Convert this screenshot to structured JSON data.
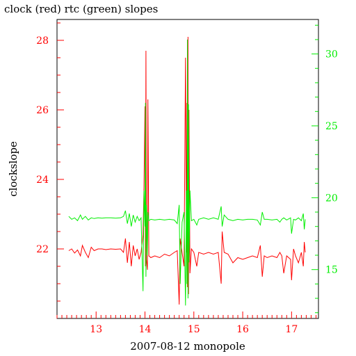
{
  "chart_data": {
    "type": "line",
    "title": "clock (red) rtc (green) slopes",
    "xlabel": "2007-08-12 monopole",
    "ylabel": "clockslope",
    "xlim": [
      12.2,
      17.55
    ],
    "ylim_left": [
      20.0,
      28.6
    ],
    "ylim_right": [
      11.6,
      32.4
    ],
    "x_ticks": [
      13,
      14,
      15,
      16,
      17
    ],
    "y_ticks_left": [
      22,
      24,
      26,
      28
    ],
    "y_ticks_right": [
      15,
      20,
      25,
      30
    ],
    "grid": false,
    "colors": {
      "clock": "#ff0000",
      "rtc": "#00ee00",
      "axis": "#000000"
    },
    "series": [
      {
        "name": "clock",
        "color": "#ff0000",
        "axis": "left",
        "points": [
          [
            12.44,
            21.95
          ],
          [
            12.5,
            22.0
          ],
          [
            12.56,
            21.88
          ],
          [
            12.62,
            21.97
          ],
          [
            12.68,
            21.8
          ],
          [
            12.72,
            22.1
          ],
          [
            12.78,
            21.9
          ],
          [
            12.84,
            21.75
          ],
          [
            12.9,
            22.05
          ],
          [
            12.96,
            21.95
          ],
          [
            13.04,
            22.0
          ],
          [
            13.12,
            22.0
          ],
          [
            13.2,
            21.98
          ],
          [
            13.3,
            22.0
          ],
          [
            13.4,
            21.99
          ],
          [
            13.5,
            22.0
          ],
          [
            13.56,
            21.9
          ],
          [
            13.6,
            22.3
          ],
          [
            13.64,
            21.6
          ],
          [
            13.68,
            22.2
          ],
          [
            13.72,
            21.5
          ],
          [
            13.76,
            22.1
          ],
          [
            13.8,
            21.8
          ],
          [
            13.84,
            22.0
          ],
          [
            13.88,
            21.7
          ],
          [
            13.92,
            21.9
          ],
          [
            13.96,
            22.4
          ],
          [
            13.98,
            23.8
          ],
          [
            14.0,
            26.1
          ],
          [
            14.01,
            21.5
          ],
          [
            14.02,
            27.7
          ],
          [
            14.03,
            21.7
          ],
          [
            14.05,
            21.4
          ],
          [
            14.06,
            26.3
          ],
          [
            14.08,
            21.8
          ],
          [
            14.12,
            21.75
          ],
          [
            14.2,
            21.8
          ],
          [
            14.3,
            21.75
          ],
          [
            14.4,
            21.85
          ],
          [
            14.5,
            21.8
          ],
          [
            14.6,
            21.9
          ],
          [
            14.66,
            21.95
          ],
          [
            14.7,
            20.4
          ],
          [
            14.72,
            22.3
          ],
          [
            14.76,
            21.9
          ],
          [
            14.8,
            21.5
          ],
          [
            14.83,
            27.5
          ],
          [
            14.85,
            21.9
          ],
          [
            14.86,
            26.2
          ],
          [
            14.87,
            20.9
          ],
          [
            14.88,
            28.1
          ],
          [
            14.89,
            20.7
          ],
          [
            14.9,
            26.0
          ],
          [
            14.92,
            21.3
          ],
          [
            14.95,
            22.0
          ],
          [
            15.0,
            21.9
          ],
          [
            15.06,
            21.5
          ],
          [
            15.1,
            21.9
          ],
          [
            15.2,
            21.85
          ],
          [
            15.3,
            21.9
          ],
          [
            15.4,
            21.85
          ],
          [
            15.5,
            21.9
          ],
          [
            15.56,
            21.0
          ],
          [
            15.58,
            22.5
          ],
          [
            15.62,
            21.9
          ],
          [
            15.7,
            21.85
          ],
          [
            15.8,
            21.6
          ],
          [
            15.9,
            21.75
          ],
          [
            16.0,
            21.7
          ],
          [
            16.1,
            21.75
          ],
          [
            16.2,
            21.8
          ],
          [
            16.3,
            21.75
          ],
          [
            16.36,
            22.1
          ],
          [
            16.4,
            21.2
          ],
          [
            16.44,
            21.8
          ],
          [
            16.5,
            21.75
          ],
          [
            16.6,
            21.8
          ],
          [
            16.7,
            21.75
          ],
          [
            16.76,
            21.9
          ],
          [
            16.8,
            21.8
          ],
          [
            16.84,
            21.3
          ],
          [
            16.9,
            21.8
          ],
          [
            16.98,
            21.7
          ],
          [
            17.0,
            21.1
          ],
          [
            17.04,
            22.0
          ],
          [
            17.08,
            21.8
          ],
          [
            17.14,
            21.6
          ],
          [
            17.2,
            21.9
          ],
          [
            17.24,
            21.5
          ],
          [
            17.26,
            22.2
          ],
          [
            17.28,
            21.9
          ]
        ]
      },
      {
        "name": "rtc",
        "color": "#00ee00",
        "axis": "right",
        "points": [
          [
            12.44,
            18.7
          ],
          [
            12.5,
            18.5
          ],
          [
            12.56,
            18.6
          ],
          [
            12.62,
            18.4
          ],
          [
            12.68,
            18.8
          ],
          [
            12.72,
            18.5
          ],
          [
            12.78,
            18.7
          ],
          [
            12.84,
            18.45
          ],
          [
            12.9,
            18.6
          ],
          [
            12.96,
            18.55
          ],
          [
            13.04,
            18.6
          ],
          [
            13.12,
            18.58
          ],
          [
            13.2,
            18.6
          ],
          [
            13.3,
            18.6
          ],
          [
            13.4,
            18.58
          ],
          [
            13.5,
            18.6
          ],
          [
            13.56,
            18.7
          ],
          [
            13.6,
            19.1
          ],
          [
            13.64,
            18.2
          ],
          [
            13.68,
            18.9
          ],
          [
            13.72,
            18.0
          ],
          [
            13.76,
            18.8
          ],
          [
            13.8,
            18.3
          ],
          [
            13.84,
            18.7
          ],
          [
            13.88,
            18.4
          ],
          [
            13.92,
            18.6
          ],
          [
            13.96,
            13.5
          ],
          [
            13.98,
            20.5
          ],
          [
            14.0,
            18.0
          ],
          [
            14.01,
            26.6
          ],
          [
            14.02,
            14.5
          ],
          [
            14.03,
            19.5
          ],
          [
            14.05,
            16.0
          ],
          [
            14.06,
            19.0
          ],
          [
            14.08,
            18.4
          ],
          [
            14.12,
            18.5
          ],
          [
            14.2,
            18.45
          ],
          [
            14.3,
            18.5
          ],
          [
            14.4,
            18.45
          ],
          [
            14.5,
            18.5
          ],
          [
            14.6,
            18.45
          ],
          [
            14.66,
            18.2
          ],
          [
            14.7,
            19.5
          ],
          [
            14.72,
            14.0
          ],
          [
            14.76,
            18.3
          ],
          [
            14.8,
            19.0
          ],
          [
            14.83,
            12.5
          ],
          [
            14.85,
            20.5
          ],
          [
            14.86,
            14.0
          ],
          [
            14.87,
            31.0
          ],
          [
            14.88,
            13.0
          ],
          [
            14.89,
            26.5
          ],
          [
            14.9,
            15.5
          ],
          [
            14.92,
            20.5
          ],
          [
            14.95,
            18.4
          ],
          [
            15.0,
            18.5
          ],
          [
            15.06,
            18.1
          ],
          [
            15.1,
            18.5
          ],
          [
            15.2,
            18.6
          ],
          [
            15.3,
            18.5
          ],
          [
            15.4,
            18.6
          ],
          [
            15.5,
            18.5
          ],
          [
            15.56,
            19.4
          ],
          [
            15.58,
            18.0
          ],
          [
            15.62,
            18.8
          ],
          [
            15.7,
            18.5
          ],
          [
            15.8,
            18.4
          ],
          [
            15.9,
            18.5
          ],
          [
            16.0,
            18.45
          ],
          [
            16.1,
            18.5
          ],
          [
            16.2,
            18.5
          ],
          [
            16.3,
            18.45
          ],
          [
            16.36,
            18.1
          ],
          [
            16.4,
            19.0
          ],
          [
            16.44,
            18.5
          ],
          [
            16.5,
            18.5
          ],
          [
            16.6,
            18.45
          ],
          [
            16.7,
            18.5
          ],
          [
            16.76,
            18.3
          ],
          [
            16.8,
            18.5
          ],
          [
            16.84,
            18.6
          ],
          [
            16.9,
            18.45
          ],
          [
            16.98,
            18.6
          ],
          [
            17.0,
            17.5
          ],
          [
            17.04,
            18.5
          ],
          [
            17.08,
            18.45
          ],
          [
            17.14,
            18.6
          ],
          [
            17.2,
            18.4
          ],
          [
            17.24,
            18.9
          ],
          [
            17.26,
            17.8
          ],
          [
            17.28,
            18.5
          ]
        ]
      }
    ]
  }
}
